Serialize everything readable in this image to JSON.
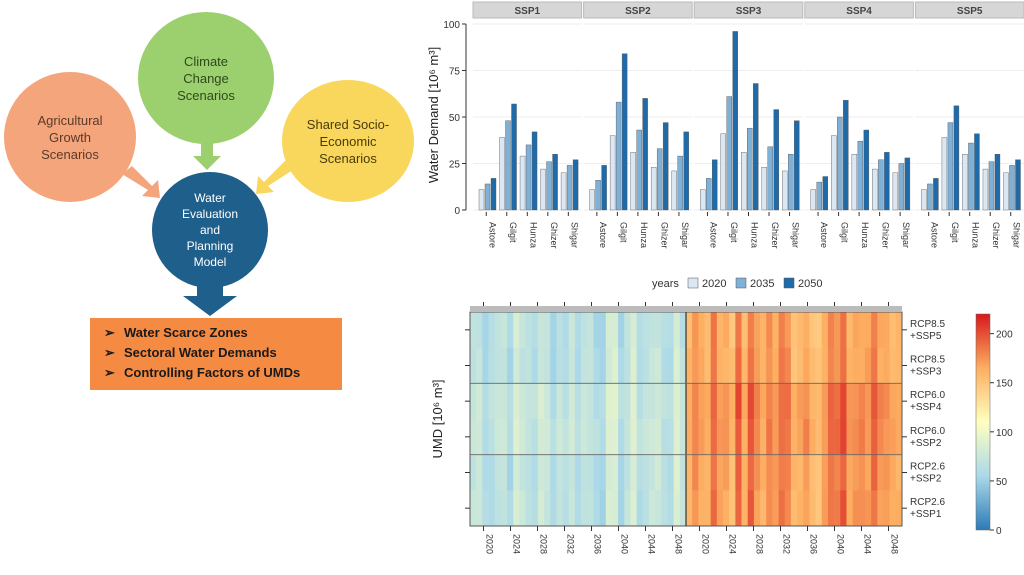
{
  "flow": {
    "agri": "Agricultural\nGrowth\nScenarios",
    "climate": "Climate\nChange\nScenarios",
    "shared": "Shared Socio-\nEconomic\nScenarios",
    "weap": "Water\nEvaluation\nand\nPlanning\nModel",
    "outputs": [
      "Water Scarce Zones",
      "Sectoral Water Demands",
      "Controlling Factors of UMDs"
    ],
    "bullet": "➢",
    "colors": {
      "agri": "#f4a57b",
      "climate": "#9ccf6e",
      "shared": "#f9d65c",
      "weap": "#1f5f8b",
      "outputs": "#f58a42",
      "arrow": "#1f5f8b"
    }
  },
  "chart_data": [
    {
      "type": "bar",
      "panels": [
        "SSP1",
        "SSP2",
        "SSP3",
        "SSP4",
        "SSP5"
      ],
      "categories": [
        "Astore",
        "Gilgit",
        "Hunza",
        "Ghizer",
        "Shigar"
      ],
      "ylabel": "Water Demand [10⁶ m³]",
      "ylim": [
        0,
        100
      ],
      "yticks": [
        0,
        25,
        50,
        75,
        100
      ],
      "legend_title": "years",
      "series": [
        {
          "name": "2020",
          "color": "#dbe7f3",
          "panels": [
            [
              11,
              39,
              29,
              22,
              20
            ],
            [
              11,
              40,
              31,
              23,
              21
            ],
            [
              11,
              41,
              31,
              23,
              21
            ],
            [
              11,
              40,
              30,
              22,
              20
            ],
            [
              11,
              39,
              30,
              22,
              20
            ]
          ]
        },
        {
          "name": "2035",
          "color": "#7fb0d6",
          "panels": [
            [
              14,
              48,
              35,
              26,
              24
            ],
            [
              16,
              58,
              43,
              33,
              29
            ],
            [
              17,
              61,
              44,
              34,
              30
            ],
            [
              15,
              50,
              37,
              27,
              25
            ],
            [
              14,
              47,
              36,
              26,
              24
            ]
          ]
        },
        {
          "name": "2050",
          "color": "#1f6aa8",
          "panels": [
            [
              17,
              57,
              42,
              30,
              27
            ],
            [
              24,
              84,
              60,
              47,
              42
            ],
            [
              27,
              96,
              68,
              54,
              48
            ],
            [
              18,
              59,
              43,
              31,
              28
            ],
            [
              17,
              56,
              41,
              30,
              27
            ]
          ]
        }
      ]
    },
    {
      "type": "heatmap",
      "ylabel": "UMD [10⁶ m³]",
      "rows": [
        "RCP8.5\n+SSP5",
        "RCP8.5\n+SSP3",
        "RCP6.0\n+SSP4",
        "RCP6.0\n+SSP2",
        "RCP2.6\n+SSP2",
        "RCP2.6\n+SSP1"
      ],
      "xticks": [
        "2020",
        "2024",
        "2028",
        "2032",
        "2036",
        "2040",
        "2044",
        "2048",
        "2020",
        "2024",
        "2028",
        "2032",
        "2036",
        "2040",
        "2044",
        "2048"
      ],
      "colorbar": {
        "min": 0,
        "max": 220,
        "ticks": [
          0,
          50,
          100,
          150,
          200
        ]
      },
      "block_means": [
        [
          68,
          75,
          70
        ],
        [
          170,
          180,
          175
        ]
      ]
    }
  ]
}
